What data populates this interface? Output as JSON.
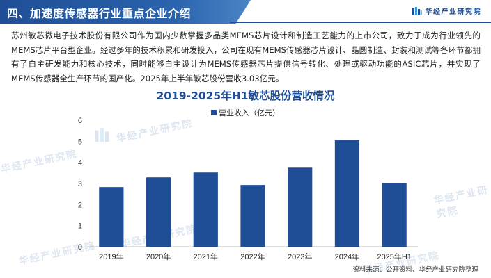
{
  "header": {
    "title": "四、加速度传感器行业重点企业介绍",
    "brand": "华经产业研究院"
  },
  "intro": "苏州敏芯微电子技术股份有限公司作为国内少数掌握多品类MEMS芯片设计和制造工艺能力的上市公司，致力于成为行业领先的MEMS芯片平台型企业。经过多年的技术积累和研发投入，公司在现有MEMS传感器芯片设计、晶圆制造、封装和测试等各环节都拥有了自主研发能力和核心技术，同时能够自主设计为MEMS传感器芯片提供信号转化、处理或驱动功能的ASIC芯片，并实现了MEMS传感器全生产环节的国产化。2025年上半年敏芯股份营收3.03亿元。",
  "watermark": "华经产业研究院",
  "source": "资料来源：公开资料、华经产业研究院整理",
  "colors": {
    "bar": "#1f4e96",
    "accent": "#1f4e96"
  },
  "chart_data": {
    "type": "bar",
    "title": "2019-2025年H1敏芯股份营收情况",
    "categories": [
      "2019年",
      "2020年",
      "2021年",
      "2022年",
      "2023年",
      "2024年",
      "2025年H1"
    ],
    "series": [
      {
        "name": "营业收入（亿元）",
        "values": [
          2.83,
          3.29,
          3.52,
          2.93,
          3.75,
          5.05,
          3.03
        ]
      }
    ],
    "ylim": [
      0,
      6
    ],
    "yticks": [
      0,
      1,
      2,
      3,
      4,
      5,
      6
    ],
    "grid": false,
    "legend": "top-center"
  }
}
